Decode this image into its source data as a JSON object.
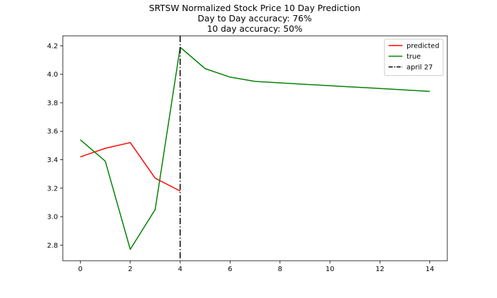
{
  "chart_data": {
    "type": "line",
    "title": "SRTSW Normalized Stock Price 10 Day Prediction",
    "subtitle_lines": [
      "Day to Day accuracy: 76%",
      "10 day accuracy: 50%"
    ],
    "xlabel": "",
    "ylabel": "",
    "xlim": [
      -0.7,
      14.7
    ],
    "ylim": [
      2.69,
      4.27
    ],
    "x_ticks": [
      0,
      2,
      4,
      6,
      8,
      10,
      12,
      14
    ],
    "y_ticks": [
      2.8,
      3.0,
      3.2,
      3.4,
      3.6,
      3.8,
      4.0,
      4.2
    ],
    "y_tick_labels": [
      "2.8",
      "3.0",
      "3.2",
      "3.4",
      "3.6",
      "3.8",
      "4.0",
      "4.2"
    ],
    "grid": false,
    "legend_position": "top-right",
    "series": [
      {
        "name": "predicted",
        "color": "#ff0000",
        "x": [
          0,
          1,
          2,
          3,
          4
        ],
        "y": [
          3.42,
          3.48,
          3.52,
          3.27,
          3.18
        ]
      },
      {
        "name": "true",
        "color": "#008000",
        "x": [
          0,
          1,
          2,
          3,
          4,
          5,
          6,
          7,
          8,
          9,
          10,
          11,
          12,
          13,
          14
        ],
        "y": [
          3.54,
          3.39,
          2.77,
          3.05,
          4.19,
          4.04,
          3.98,
          3.95,
          3.94,
          3.93,
          3.92,
          3.91,
          3.9,
          3.89,
          3.88
        ]
      }
    ],
    "vlines": [
      {
        "name": "april 27",
        "x": 4,
        "color": "#000000",
        "style": "dashdot"
      }
    ]
  }
}
